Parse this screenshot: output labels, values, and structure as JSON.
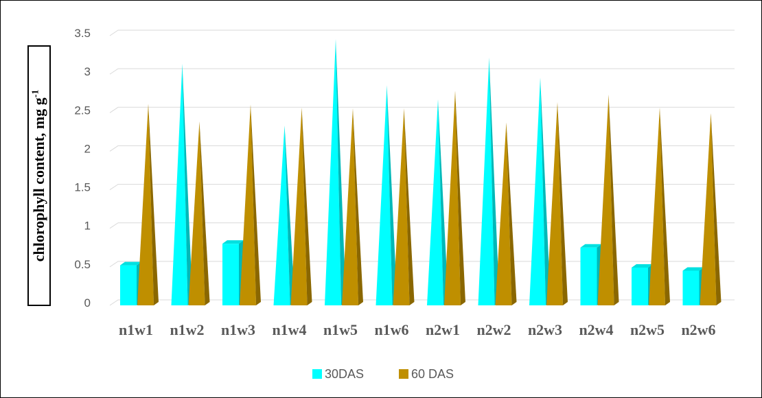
{
  "chart_data": {
    "type": "bar",
    "categories": [
      "n1w1",
      "n1w2",
      "n1w3",
      "n1w4",
      "n1w5",
      "n1w6",
      "n2w1",
      "n2w2",
      "n2w3",
      "n2w4",
      "n2w5",
      "n2w6"
    ],
    "series": [
      {
        "name": "30DAS",
        "color": "#00FFFF",
        "values": [
          0.52,
          3.1,
          0.8,
          2.3,
          3.42,
          2.82,
          2.64,
          3.18,
          2.92,
          0.75,
          0.49,
          0.45
        ]
      },
      {
        "name": "60 DAS",
        "color": "#BF8F00",
        "values": [
          2.58,
          2.35,
          2.57,
          2.53,
          2.52,
          2.52,
          2.75,
          2.34,
          2.6,
          2.7,
          2.53,
          2.46
        ]
      }
    ],
    "ylabel": {
      "text": "chlorophyll content, mg g",
      "superscript": "-1"
    },
    "ylim": [
      0,
      3.5
    ],
    "yticks": [
      "0",
      "0.5",
      "1",
      "1.5",
      "2",
      "2.5",
      "3",
      "3.5"
    ],
    "grid": true,
    "legend_position": "bottom"
  }
}
